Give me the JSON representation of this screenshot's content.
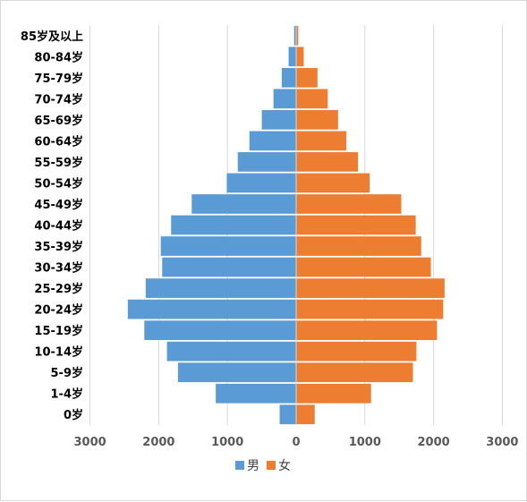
{
  "chart_data": {
    "type": "bar",
    "orientation": "horizontal",
    "layout": "population-pyramid",
    "categories": [
      "0岁",
      "1-4岁",
      "5-9岁",
      "10-14岁",
      "15-19岁",
      "20-24岁",
      "25-29岁",
      "30-34岁",
      "35-39岁",
      "40-44岁",
      "45-49岁",
      "50-54岁",
      "55-59岁",
      "60-64岁",
      "65-69岁",
      "70-74岁",
      "75-79岁",
      "80-84岁",
      "85岁及以上"
    ],
    "series": [
      {
        "name": "男",
        "color": "#5b9bd5",
        "values": [
          240,
          1170,
          1720,
          1880,
          2210,
          2450,
          2190,
          1950,
          1970,
          1820,
          1520,
          1010,
          850,
          680,
          500,
          330,
          210,
          110,
          30
        ]
      },
      {
        "name": "女",
        "color": "#ed7d31",
        "values": [
          270,
          1090,
          1700,
          1750,
          2050,
          2140,
          2160,
          1960,
          1820,
          1740,
          1530,
          1070,
          900,
          730,
          610,
          460,
          310,
          110,
          30
        ]
      }
    ],
    "xticks": [
      "3000",
      "2000",
      "1000",
      "0",
      "1000",
      "2000",
      "3000"
    ],
    "xlim": [
      -3000,
      3000
    ],
    "grid": true,
    "legend_position": "bottom"
  }
}
